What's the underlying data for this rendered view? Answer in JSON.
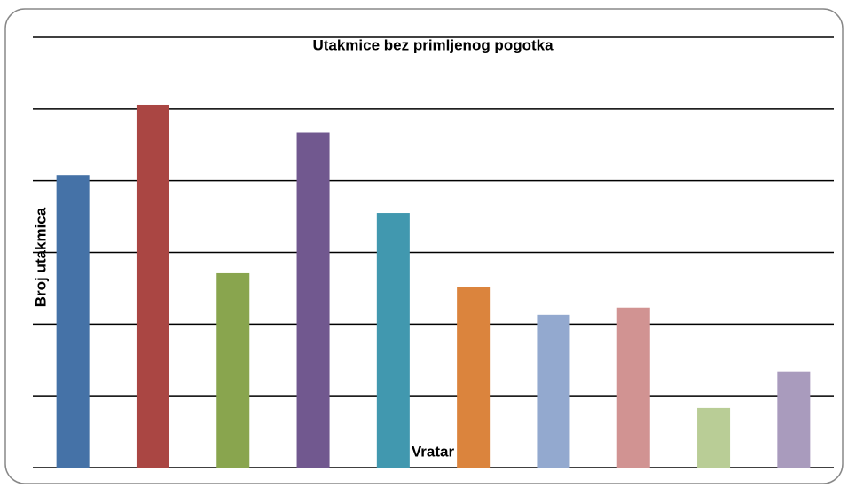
{
  "chart_data": {
    "type": "bar",
    "title": "Utakmice bez primljenog pogotka",
    "x_label": "Vratar",
    "y_label": "Broj utakmica",
    "categories": [
      null,
      null,
      null,
      null,
      null,
      null,
      null,
      null,
      null,
      null
    ],
    "values": [
      4.08,
      5.06,
      2.71,
      4.67,
      3.55,
      2.52,
      2.13,
      2.23,
      0.83,
      1.34
    ],
    "colors": [
      "#4572a7",
      "#aa4643",
      "#89a54e",
      "#71588f",
      "#4198af",
      "#db843d",
      "#93a9cf",
      "#d19392",
      "#b9cd96",
      "#a99bbd"
    ],
    "ylim": [
      0,
      6
    ],
    "yticks": [
      0,
      1,
      2,
      3,
      4,
      5,
      6
    ],
    "grid": true
  }
}
